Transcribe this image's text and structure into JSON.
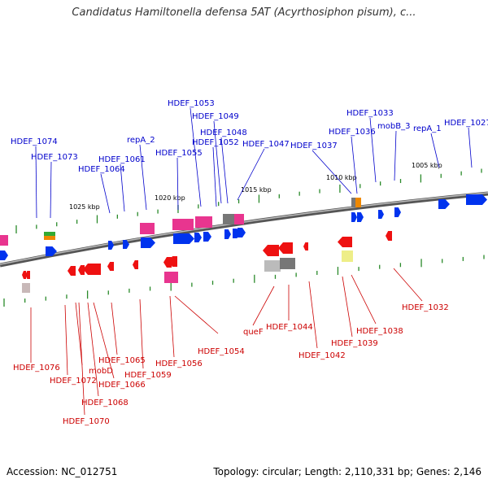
{
  "title": "Candidatus Hamiltonella defensa 5AT (Acyrthosiphon pisum), c...",
  "footer": {
    "accession": "Accession: NC_012751",
    "summary": "Topology: circular; Length: 2,110,331 bp; Genes: 2,146"
  },
  "colors": {
    "forward_label": "#0000cc",
    "reverse_label": "#cc0000",
    "backbone": "#777777",
    "tick": "#2a8a2a",
    "gene_forward": "#0033ee",
    "gene_reverse": "#ee1111",
    "gene_pink": "#e8358f",
    "gene_gray": "#777777",
    "gene_green": "#33aa33",
    "gene_orange": "#ee8800",
    "gene_yellow": "#eeee88"
  },
  "kbp_marks": [
    {
      "text": "1025 kbp"
    },
    {
      "text": "1020 kbp"
    },
    {
      "text": "1015 kbp"
    },
    {
      "text": "1010 kbp"
    },
    {
      "text": "1005 kbp"
    }
  ],
  "forward_labels": [
    {
      "text": "HDEF_1074"
    },
    {
      "text": "HDEF_1073"
    },
    {
      "text": "HDEF_1064"
    },
    {
      "text": "HDEF_1061"
    },
    {
      "text": "repA_2"
    },
    {
      "text": "HDEF_1055"
    },
    {
      "text": "HDEF_1053"
    },
    {
      "text": "HDEF_1052"
    },
    {
      "text": "HDEF_1049"
    },
    {
      "text": "HDEF_1048"
    },
    {
      "text": "HDEF_1047"
    },
    {
      "text": "HDEF_1037"
    },
    {
      "text": "HDEF_1036"
    },
    {
      "text": "HDEF_1033"
    },
    {
      "text": "mobB_3"
    },
    {
      "text": "repA_1"
    },
    {
      "text": "HDEF_1027"
    }
  ],
  "reverse_labels": [
    {
      "text": "HDEF_1076"
    },
    {
      "text": "HDEF_1072"
    },
    {
      "text": "mobD"
    },
    {
      "text": "HDEF_1070"
    },
    {
      "text": "HDEF_1068"
    },
    {
      "text": "HDEF_1066"
    },
    {
      "text": "HDEF_1065"
    },
    {
      "text": "HDEF_1059"
    },
    {
      "text": "HDEF_1056"
    },
    {
      "text": "HDEF_1054"
    },
    {
      "text": "queF"
    },
    {
      "text": "HDEF_1044"
    },
    {
      "text": "HDEF_1042"
    },
    {
      "text": "HDEF_1039"
    },
    {
      "text": "HDEF_1038"
    },
    {
      "text": "HDEF_1032"
    }
  ]
}
